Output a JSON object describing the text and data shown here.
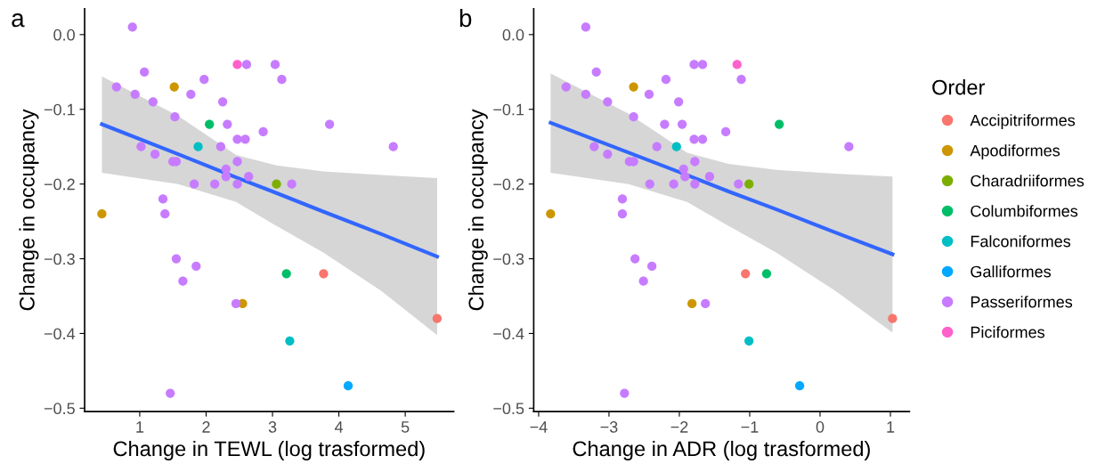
{
  "chart_data": [
    {
      "type": "scatter",
      "title": "a",
      "xlabel": "Change in TEWL (log trasformed)",
      "ylabel": "Change in occupancy",
      "marker": "circle",
      "grid": false,
      "legend": false,
      "xlim": [
        0.17,
        5.73
      ],
      "xticks": [
        1,
        2,
        3,
        4,
        5
      ],
      "ylim": [
        -0.5045,
        0.0345
      ],
      "yticks": [
        {
          "value": 0,
          "label": "0.0"
        },
        {
          "value": -0.1,
          "label": "−0.1"
        },
        {
          "value": -0.2,
          "label": "−0.2"
        },
        {
          "value": -0.3,
          "label": "−0.3"
        },
        {
          "value": -0.4,
          "label": "−0.4"
        },
        {
          "value": -0.5,
          "label": "−0.5"
        }
      ],
      "series": [
        {
          "color": "#f8766d",
          "x": [
            3.77,
            5.48
          ],
          "values": [
            -0.32,
            -0.38
          ]
        },
        {
          "color": "#cd9600",
          "x": [
            1.52,
            0.43,
            2.55
          ],
          "values": [
            -0.07,
            -0.24,
            -0.36
          ]
        },
        {
          "color": "#7cae00",
          "x": [
            3.06
          ],
          "values": [
            -0.2
          ]
        },
        {
          "color": "#00be67",
          "x": [
            2.05,
            3.21
          ],
          "values": [
            -0.12,
            -0.32
          ]
        },
        {
          "color": "#00bfc4",
          "x": [
            1.88,
            3.26
          ],
          "values": [
            -0.15,
            -0.41
          ]
        },
        {
          "color": "#00a9ff",
          "x": [
            4.14
          ],
          "values": [
            -0.47
          ]
        },
        {
          "color": "#c77cff",
          "x": [
            0.89,
            2.61,
            3.04,
            1.07,
            3.14,
            1.97,
            0.65,
            0.93,
            1.77,
            1.2,
            2.25,
            1.53,
            2.32,
            3.86,
            2.86,
            2.47,
            2.59,
            1.02,
            2.22,
            4.82,
            1.23,
            1.5,
            1.55,
            2.47,
            2.3,
            2.3,
            2.64,
            1.82,
            2.13,
            2.47,
            3.29,
            1.35,
            1.38,
            1.55,
            1.85,
            1.65,
            2.45,
            1.46
          ],
          "values": [
            0.01,
            -0.04,
            -0.04,
            -0.05,
            -0.06,
            -0.06,
            -0.07,
            -0.08,
            -0.08,
            -0.09,
            -0.09,
            -0.11,
            -0.12,
            -0.12,
            -0.13,
            -0.14,
            -0.14,
            -0.15,
            -0.15,
            -0.15,
            -0.16,
            -0.17,
            -0.17,
            -0.17,
            -0.18,
            -0.19,
            -0.19,
            -0.2,
            -0.2,
            -0.2,
            -0.2,
            -0.22,
            -0.24,
            -0.3,
            -0.31,
            -0.33,
            -0.36,
            -0.48
          ]
        },
        {
          "color": "#ff61cc",
          "x": [
            2.47
          ],
          "values": [
            -0.04
          ]
        },
        {
          "type": "line",
          "marker": "none",
          "color": "#3366ff",
          "x": [
            0.43,
            1.58,
            2.45,
            3.06,
            3.77,
            4.64,
            5.48
          ],
          "values": [
            -0.12,
            -0.16,
            -0.191,
            -0.212,
            -0.237,
            -0.267,
            -0.297
          ],
          "lower": [
            -0.185,
            -0.2,
            -0.224,
            -0.256,
            -0.292,
            -0.343,
            -0.402
          ],
          "upper": [
            -0.056,
            -0.109,
            -0.161,
            -0.175,
            -0.183,
            -0.188,
            -0.192
          ]
        }
      ]
    },
    {
      "type": "scatter",
      "title": "b",
      "xlabel": "Change in ADR (log trasformed)",
      "ylabel": "Change in occupancy",
      "marker": "circle",
      "grid": false,
      "legend": "right",
      "legend_title": "Order",
      "xlim": [
        -4.07,
        1.27
      ],
      "xticks": [
        {
          "value": -4,
          "label": "−4"
        },
        {
          "value": -3,
          "label": "−3"
        },
        {
          "value": -2,
          "label": "−2"
        },
        {
          "value": -1,
          "label": "−1"
        },
        0,
        1
      ],
      "ylim": [
        -0.5045,
        0.0345
      ],
      "yticks": [
        {
          "value": 0,
          "label": "0.0"
        },
        {
          "value": -0.1,
          "label": "−0.1"
        },
        {
          "value": -0.2,
          "label": "−0.2"
        },
        {
          "value": -0.3,
          "label": "−0.3"
        },
        {
          "value": -0.4,
          "label": "−0.4"
        },
        {
          "value": -0.5,
          "label": "−0.5"
        }
      ],
      "series": [
        {
          "name": "Accipitriformes",
          "color": "#f8766d",
          "x": [
            -1.06,
            1.03
          ],
          "values": [
            -0.32,
            -0.38
          ]
        },
        {
          "name": "Apodiformes",
          "color": "#cd9600",
          "x": [
            -2.65,
            -3.83,
            -1.82
          ],
          "values": [
            -0.07,
            -0.24,
            -0.36
          ]
        },
        {
          "name": "Charadriiformes",
          "color": "#7cae00",
          "x": [
            -1.01
          ],
          "values": [
            -0.2
          ]
        },
        {
          "name": "Columbiformes",
          "color": "#00be67",
          "x": [
            -0.58,
            -0.76
          ],
          "values": [
            -0.12,
            -0.32
          ]
        },
        {
          "name": "Falconiformes",
          "color": "#00bfc4",
          "x": [
            -2.04,
            -1.01
          ],
          "values": [
            -0.15,
            -0.41
          ]
        },
        {
          "name": "Galliformes",
          "color": "#00a9ff",
          "x": [
            -0.29
          ],
          "values": [
            -0.47
          ]
        },
        {
          "name": "Passeriformes",
          "color": "#c77cff",
          "x": [
            -3.33,
            -1.79,
            -1.67,
            -3.18,
            -1.12,
            -2.19,
            -3.61,
            -3.33,
            -2.43,
            -3.02,
            -2.01,
            -2.65,
            -2.21,
            -1.96,
            -1.34,
            -1.79,
            -1.67,
            -3.21,
            -2.32,
            0.41,
            -3.02,
            -2.71,
            -2.65,
            -1.78,
            -1.94,
            -1.92,
            -1.57,
            -2.42,
            -2.08,
            -1.78,
            -1.16,
            -2.81,
            -2.81,
            -2.63,
            -2.39,
            -2.51,
            -1.63,
            -2.78
          ],
          "values": [
            0.01,
            -0.04,
            -0.04,
            -0.05,
            -0.06,
            -0.06,
            -0.07,
            -0.08,
            -0.08,
            -0.09,
            -0.09,
            -0.11,
            -0.12,
            -0.12,
            -0.13,
            -0.14,
            -0.14,
            -0.15,
            -0.15,
            -0.15,
            -0.16,
            -0.17,
            -0.17,
            -0.17,
            -0.18,
            -0.19,
            -0.19,
            -0.2,
            -0.2,
            -0.2,
            -0.2,
            -0.22,
            -0.24,
            -0.3,
            -0.31,
            -0.33,
            -0.36,
            -0.48
          ]
        },
        {
          "name": "Piciformes",
          "color": "#ff61cc",
          "x": [
            -1.18
          ],
          "values": [
            -0.04
          ]
        },
        {
          "type": "line",
          "marker": "none",
          "color": "#3366ff",
          "x": [
            -3.83,
            -2.72,
            -1.89,
            -1.3,
            -0.62,
            0.22,
            1.03
          ],
          "values": [
            -0.118,
            -0.158,
            -0.188,
            -0.21,
            -0.234,
            -0.265,
            -0.294
          ],
          "lower": [
            -0.185,
            -0.2,
            -0.224,
            -0.256,
            -0.292,
            -0.343,
            -0.399
          ],
          "upper": [
            -0.052,
            -0.106,
            -0.158,
            -0.173,
            -0.181,
            -0.186,
            -0.19
          ]
        }
      ]
    }
  ]
}
